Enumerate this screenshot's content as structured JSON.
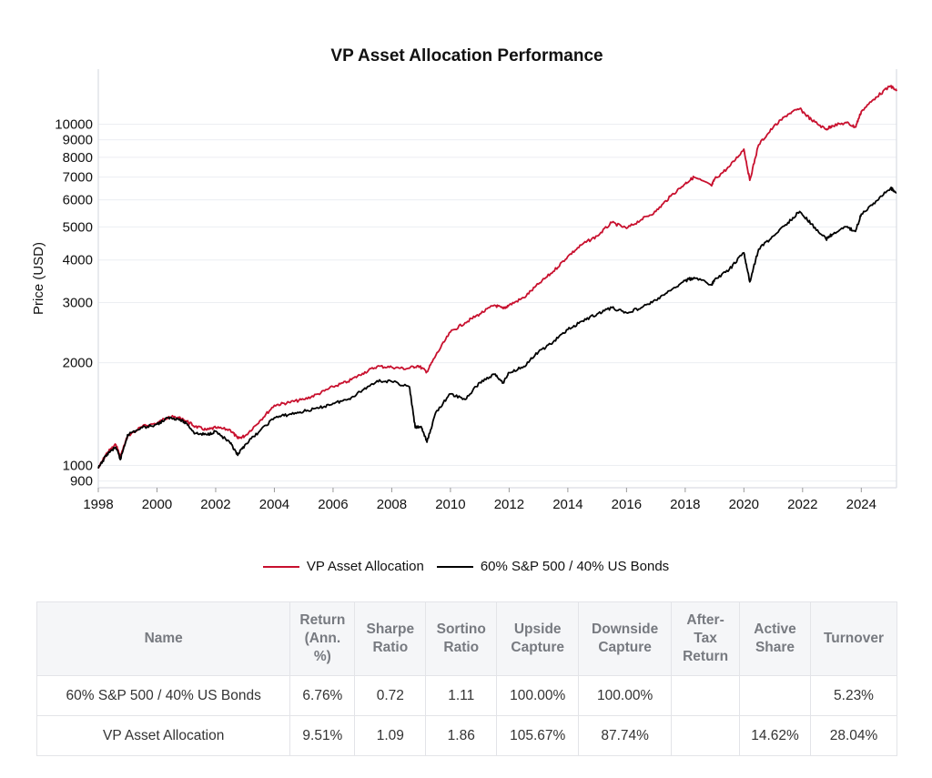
{
  "chart_data": {
    "type": "line",
    "title": "VP Asset Allocation Performance",
    "xlabel": "",
    "ylabel": "Price (USD)",
    "xlim": [
      1998.0,
      2025.2
    ],
    "ylim": [
      860,
      14500
    ],
    "yscale": "log",
    "grid": true,
    "legend_position": "bottom-center",
    "x_ticks": [
      "1998",
      "2000",
      "2002",
      "2004",
      "2006",
      "2008",
      "2010",
      "2012",
      "2014",
      "2016",
      "2018",
      "2020",
      "2022",
      "2024"
    ],
    "y_ticks": [
      900,
      1000,
      2000,
      3000,
      4000,
      5000,
      6000,
      7000,
      8000,
      9000,
      10000
    ],
    "series": [
      {
        "name": "VP Asset Allocation",
        "color": "#c8102e",
        "points": [
          [
            1998.0,
            980
          ],
          [
            1998.3,
            1090
          ],
          [
            1998.6,
            1150
          ],
          [
            1998.75,
            1060
          ],
          [
            1999.0,
            1220
          ],
          [
            1999.5,
            1300
          ],
          [
            2000.0,
            1330
          ],
          [
            2000.4,
            1390
          ],
          [
            2000.7,
            1380
          ],
          [
            2001.0,
            1350
          ],
          [
            2001.3,
            1300
          ],
          [
            2001.7,
            1270
          ],
          [
            2002.0,
            1290
          ],
          [
            2002.5,
            1270
          ],
          [
            2002.75,
            1200
          ],
          [
            2003.0,
            1220
          ],
          [
            2003.5,
            1350
          ],
          [
            2004.0,
            1500
          ],
          [
            2004.5,
            1530
          ],
          [
            2005.0,
            1560
          ],
          [
            2005.5,
            1620
          ],
          [
            2006.0,
            1700
          ],
          [
            2006.5,
            1760
          ],
          [
            2007.0,
            1860
          ],
          [
            2007.5,
            1950
          ],
          [
            2008.0,
            1940
          ],
          [
            2008.5,
            1920
          ],
          [
            2008.9,
            1960
          ],
          [
            2009.2,
            1880
          ],
          [
            2009.5,
            2100
          ],
          [
            2010.0,
            2460
          ],
          [
            2010.5,
            2620
          ],
          [
            2011.0,
            2780
          ],
          [
            2011.5,
            2950
          ],
          [
            2011.8,
            2880
          ],
          [
            2012.0,
            2950
          ],
          [
            2012.5,
            3100
          ],
          [
            2013.0,
            3400
          ],
          [
            2013.5,
            3700
          ],
          [
            2014.0,
            4100
          ],
          [
            2014.5,
            4450
          ],
          [
            2015.0,
            4700
          ],
          [
            2015.5,
            5150
          ],
          [
            2016.0,
            4950
          ],
          [
            2016.5,
            5250
          ],
          [
            2017.0,
            5550
          ],
          [
            2017.5,
            6150
          ],
          [
            2018.0,
            6700
          ],
          [
            2018.3,
            7000
          ],
          [
            2018.9,
            6600
          ],
          [
            2019.0,
            6900
          ],
          [
            2019.5,
            7500
          ],
          [
            2020.0,
            8450
          ],
          [
            2020.2,
            6850
          ],
          [
            2020.5,
            8700
          ],
          [
            2021.0,
            9800
          ],
          [
            2021.5,
            10700
          ],
          [
            2021.9,
            11100
          ],
          [
            2022.3,
            10300
          ],
          [
            2022.8,
            9650
          ],
          [
            2023.0,
            9900
          ],
          [
            2023.5,
            10100
          ],
          [
            2023.8,
            9800
          ],
          [
            2024.0,
            10900
          ],
          [
            2024.5,
            12000
          ],
          [
            2025.0,
            12950
          ],
          [
            2025.2,
            12500
          ]
        ]
      },
      {
        "name": "60% S&P 500 / 40% US Bonds",
        "color": "#000000",
        "points": [
          [
            1998.0,
            980
          ],
          [
            1998.3,
            1080
          ],
          [
            1998.6,
            1130
          ],
          [
            1998.75,
            1040
          ],
          [
            1999.0,
            1230
          ],
          [
            1999.5,
            1290
          ],
          [
            2000.0,
            1320
          ],
          [
            2000.4,
            1380
          ],
          [
            2000.7,
            1370
          ],
          [
            2001.0,
            1330
          ],
          [
            2001.3,
            1240
          ],
          [
            2001.7,
            1230
          ],
          [
            2002.0,
            1260
          ],
          [
            2002.5,
            1160
          ],
          [
            2002.75,
            1070
          ],
          [
            2003.0,
            1150
          ],
          [
            2003.5,
            1260
          ],
          [
            2004.0,
            1380
          ],
          [
            2004.5,
            1410
          ],
          [
            2005.0,
            1440
          ],
          [
            2005.5,
            1470
          ],
          [
            2006.0,
            1520
          ],
          [
            2006.5,
            1560
          ],
          [
            2007.0,
            1660
          ],
          [
            2007.5,
            1770
          ],
          [
            2008.0,
            1760
          ],
          [
            2008.6,
            1700
          ],
          [
            2008.8,
            1290
          ],
          [
            2009.0,
            1300
          ],
          [
            2009.2,
            1170
          ],
          [
            2009.5,
            1430
          ],
          [
            2010.0,
            1620
          ],
          [
            2010.5,
            1560
          ],
          [
            2011.0,
            1750
          ],
          [
            2011.5,
            1850
          ],
          [
            2011.8,
            1750
          ],
          [
            2012.0,
            1870
          ],
          [
            2012.5,
            1950
          ],
          [
            2013.0,
            2150
          ],
          [
            2013.5,
            2300
          ],
          [
            2014.0,
            2500
          ],
          [
            2014.5,
            2650
          ],
          [
            2015.0,
            2780
          ],
          [
            2015.5,
            2900
          ],
          [
            2016.0,
            2800
          ],
          [
            2016.5,
            2900
          ],
          [
            2017.0,
            3050
          ],
          [
            2017.5,
            3250
          ],
          [
            2018.0,
            3480
          ],
          [
            2018.3,
            3550
          ],
          [
            2018.9,
            3380
          ],
          [
            2019.0,
            3500
          ],
          [
            2019.5,
            3750
          ],
          [
            2020.0,
            4200
          ],
          [
            2020.2,
            3450
          ],
          [
            2020.5,
            4300
          ],
          [
            2021.0,
            4700
          ],
          [
            2021.5,
            5150
          ],
          [
            2021.9,
            5550
          ],
          [
            2022.3,
            5100
          ],
          [
            2022.8,
            4600
          ],
          [
            2023.0,
            4750
          ],
          [
            2023.5,
            5000
          ],
          [
            2023.8,
            4850
          ],
          [
            2024.0,
            5450
          ],
          [
            2024.5,
            5950
          ],
          [
            2025.0,
            6500
          ],
          [
            2025.2,
            6300
          ]
        ]
      }
    ]
  },
  "table": {
    "headers": [
      "Name",
      "Return\n(Ann.\n%)",
      "Sharpe\nRatio",
      "Sortino\nRatio",
      "Upside\nCapture",
      "Downside\nCapture",
      "After-\nTax\nReturn",
      "Active\nShare",
      "Turnover"
    ],
    "rows": [
      [
        "60% S&P 500 / 40% US Bonds",
        "6.76%",
        "0.72",
        "1.11",
        "100.00%",
        "100.00%",
        "",
        "",
        "5.23%"
      ],
      [
        "VP Asset Allocation",
        "9.51%",
        "1.09",
        "1.86",
        "105.67%",
        "87.74%",
        "",
        "14.62%",
        "28.04%"
      ]
    ]
  }
}
